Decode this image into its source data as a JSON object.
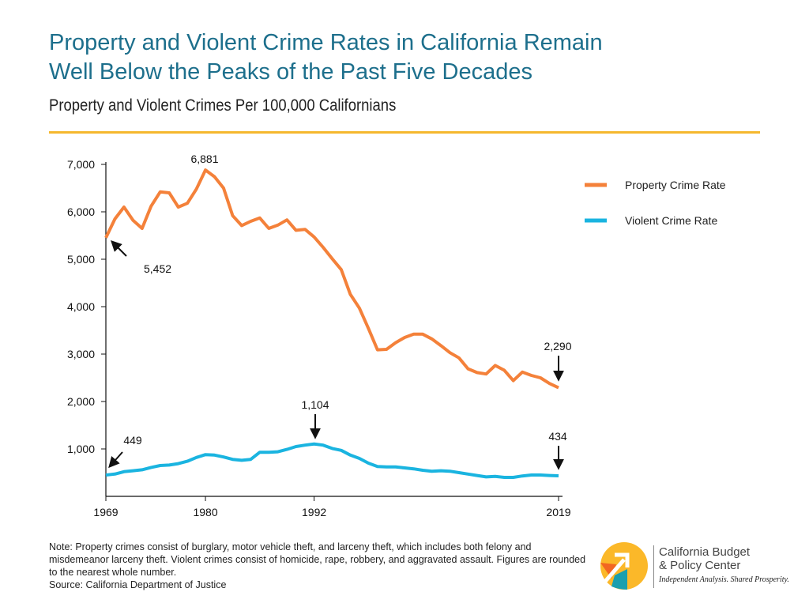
{
  "title_line1": "Property and Violent Crime Rates in California Remain",
  "title_line2": "Well Below the Peaks of the Past Five Decades",
  "chart_data": {
    "type": "line",
    "title": "Property and Violent Crime Rates in California Remain Well Below the Peaks of the Past Five Decades",
    "subtitle": "Property and Violent Crimes Per 100,000 Californians",
    "xlim": [
      1969,
      2019
    ],
    "ylim": [
      0,
      7000
    ],
    "yticks": [
      1000,
      2000,
      3000,
      4000,
      5000,
      6000,
      7000
    ],
    "ytick_labels": [
      "1,000",
      "2,000",
      "3,000",
      "4,000",
      "5,000",
      "6,000",
      "7,000"
    ],
    "xticks": [
      1969,
      1980,
      1992,
      2019
    ],
    "grid": false,
    "legend_placement": "top-right",
    "x_start": 1969,
    "series": [
      {
        "name": "Property Crime Rate",
        "color": "#f4813a",
        "values": [
          5452,
          5850,
          6100,
          5820,
          5650,
          6120,
          6420,
          6400,
          6100,
          6180,
          6480,
          6881,
          6740,
          6500,
          5920,
          5710,
          5800,
          5870,
          5650,
          5720,
          5830,
          5610,
          5630,
          5470,
          5250,
          5010,
          4780,
          4260,
          3970,
          3540,
          3090,
          3100,
          3240,
          3350,
          3420,
          3420,
          3320,
          3180,
          3030,
          2920,
          2690,
          2610,
          2580,
          2760,
          2660,
          2440,
          2620,
          2550,
          2500,
          2380,
          2290
        ]
      },
      {
        "name": "Violent Crime Rate",
        "color": "#1ab4e0",
        "values": [
          449,
          470,
          520,
          540,
          560,
          610,
          650,
          660,
          690,
          740,
          820,
          880,
          870,
          830,
          780,
          760,
          780,
          930,
          930,
          940,
          990,
          1050,
          1080,
          1104,
          1080,
          1010,
          970,
          870,
          800,
          700,
          630,
          620,
          620,
          600,
          580,
          550,
          530,
          540,
          530,
          500,
          470,
          440,
          410,
          420,
          400,
          400,
          430,
          450,
          450,
          440,
          434
        ]
      }
    ],
    "annotations": [
      {
        "label": "5,452",
        "x": 1969,
        "y": 5452
      },
      {
        "label": "6,881",
        "x": 1980,
        "y": 6881
      },
      {
        "label": "2,290",
        "x": 2019,
        "y": 2290
      },
      {
        "label": "449",
        "x": 1969,
        "y": 449
      },
      {
        "label": "1,104",
        "x": 1992,
        "y": 1104
      },
      {
        "label": "434",
        "x": 2019,
        "y": 434
      }
    ]
  },
  "note": {
    "text": "Note: Property crimes consist of burglary, motor vehicle theft, and larceny theft, which includes both felony and misdemeanor larceny theft. Violent crimes consist of homicide, rape, robbery, and aggravated assault. Figures are rounded to the nearest whole number.",
    "source": "Source: California Department of Justice"
  },
  "logo": {
    "line1": "California Budget",
    "line2": "& Policy Center",
    "tagline": "Independent Analysis. Shared Prosperity."
  }
}
